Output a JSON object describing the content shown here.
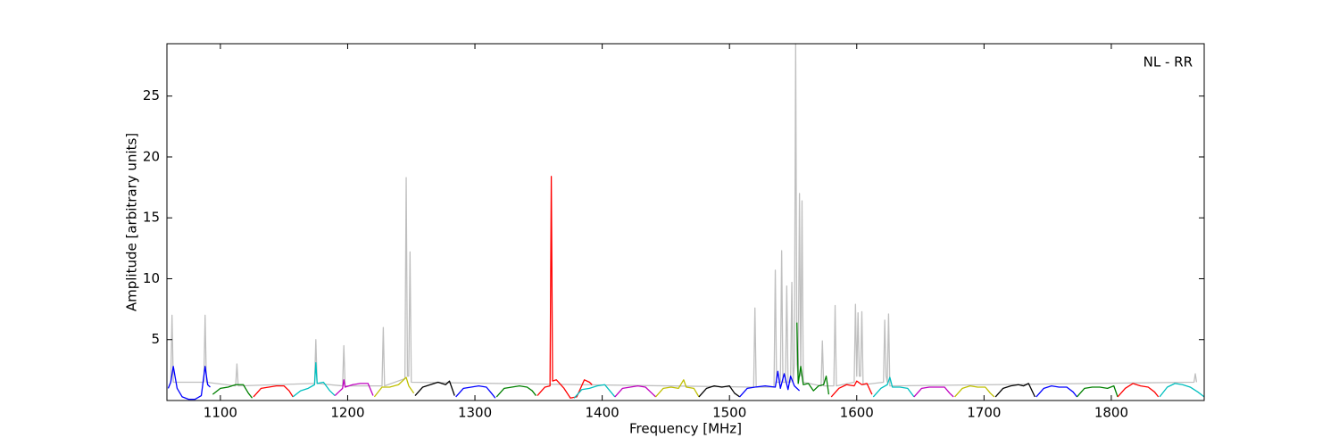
{
  "chart_data": {
    "type": "line",
    "xlabel": "Frequency [MHz]",
    "ylabel": "Amplitude [arbitrary units]",
    "annotation": "NL - RR",
    "xlim": [
      1058,
      1873
    ],
    "ylim": [
      0,
      29.3
    ],
    "xticks": [
      1100,
      1200,
      1300,
      1400,
      1500,
      1600,
      1700,
      1800
    ],
    "yticks": [
      5,
      10,
      15,
      20,
      25
    ],
    "series": [
      {
        "color": "#bfbfbf",
        "x": [
          1059,
          1061,
          1062,
          1063,
          1087,
          1088,
          1089,
          1112,
          1113,
          1114,
          1174,
          1175,
          1176,
          1196,
          1197,
          1198,
          1227,
          1228,
          1229,
          1245,
          1246,
          1247,
          1248,
          1249,
          1250,
          1519,
          1520,
          1521,
          1535,
          1536,
          1537,
          1540,
          1541,
          1542,
          1544,
          1545,
          1546,
          1548,
          1549,
          1550,
          1551,
          1552,
          1553,
          1554,
          1555,
          1556,
          1557,
          1558,
          1572,
          1573,
          1574,
          1582,
          1583,
          1584,
          1598,
          1599,
          1600,
          1601,
          1602,
          1603,
          1604,
          1605,
          1621,
          1622,
          1623,
          1624,
          1625,
          1626,
          1865,
          1866,
          1867
        ],
        "values": [
          1.0,
          1.5,
          7.0,
          1.5,
          1.5,
          7.0,
          1.5,
          1.2,
          3.0,
          1.2,
          1.4,
          5.0,
          1.4,
          1.2,
          4.5,
          1.2,
          1.2,
          6.0,
          1.2,
          1.8,
          18.3,
          2.0,
          2.0,
          12.2,
          1.5,
          1.1,
          7.6,
          1.1,
          1.1,
          10.7,
          1.5,
          1.5,
          12.3,
          1.5,
          1.5,
          9.4,
          1.5,
          1.5,
          9.7,
          1.5,
          3,
          29.3,
          3,
          2,
          17,
          2,
          16.4,
          1.5,
          1.2,
          4.9,
          1.2,
          1.2,
          7.8,
          1.2,
          1.5,
          7.9,
          2,
          7.2,
          2,
          2,
          7.3,
          1.3,
          1.5,
          6.6,
          2,
          1.5,
          7.1,
          1.2,
          1.5,
          2.2,
          1.5
        ]
      },
      {
        "color": "#0000ff",
        "x": [
          1059,
          1061,
          1063,
          1066,
          1070,
          1075,
          1080,
          1085,
          1088,
          1090,
          1092
        ],
        "values": [
          1.0,
          1.5,
          2.8,
          1.0,
          0.3,
          0.1,
          0.1,
          0.4,
          2.8,
          1.3,
          1.1
        ]
      },
      {
        "color": "#008000",
        "x": [
          1094,
          1100,
          1106,
          1112,
          1118,
          1122,
          1125
        ],
        "values": [
          0.5,
          1.0,
          1.1,
          1.3,
          1.3,
          0.6,
          0.2
        ]
      },
      {
        "color": "#ff0000",
        "x": [
          1126,
          1132,
          1138,
          1144,
          1150,
          1154,
          1157
        ],
        "values": [
          0.3,
          1.0,
          1.1,
          1.2,
          1.2,
          0.8,
          0.3
        ]
      },
      {
        "color": "#00bfbf",
        "x": [
          1157,
          1163,
          1169,
          1174,
          1175,
          1176,
          1181,
          1186,
          1190
        ],
        "values": [
          0.3,
          0.8,
          1.0,
          1.3,
          3.1,
          1.4,
          1.5,
          0.8,
          0.4
        ]
      },
      {
        "color": "#bf00bf",
        "x": [
          1190,
          1196,
          1197,
          1198,
          1204,
          1210,
          1216,
          1220
        ],
        "values": [
          0.4,
          1.0,
          1.7,
          1.1,
          1.3,
          1.4,
          1.4,
          0.4
        ]
      },
      {
        "color": "#bfbf00",
        "x": [
          1221,
          1227,
          1233,
          1240,
          1246,
          1248,
          1252
        ],
        "values": [
          0.3,
          1.1,
          1.1,
          1.3,
          1.9,
          1.2,
          0.6
        ]
      },
      {
        "color": "#000000",
        "x": [
          1253,
          1259,
          1265,
          1271,
          1277,
          1280,
          1284
        ],
        "values": [
          0.4,
          1.1,
          1.3,
          1.5,
          1.3,
          1.6,
          0.4
        ]
      },
      {
        "color": "#0000ff",
        "x": [
          1285,
          1291,
          1297,
          1303,
          1309,
          1313,
          1316
        ],
        "values": [
          0.3,
          1.0,
          1.1,
          1.2,
          1.1,
          0.6,
          0.2
        ]
      },
      {
        "color": "#008000",
        "x": [
          1317,
          1323,
          1329,
          1335,
          1341,
          1345,
          1348
        ],
        "values": [
          0.3,
          1.0,
          1.1,
          1.2,
          1.1,
          0.8,
          0.4
        ]
      },
      {
        "color": "#ff0000",
        "x": [
          1349,
          1355,
          1359,
          1360,
          1361,
          1364,
          1370,
          1375,
          1380,
          1386,
          1390,
          1392
        ],
        "values": [
          0.4,
          1.1,
          1.2,
          18.4,
          1.6,
          1.7,
          1.0,
          0.2,
          0.3,
          1.7,
          1.5,
          1.3
        ]
      },
      {
        "color": "#00bfbf",
        "x": [
          1378,
          1384,
          1390,
          1396,
          1402,
          1406,
          1410
        ],
        "values": [
          0.2,
          0.9,
          1.0,
          1.2,
          1.3,
          0.8,
          0.3
        ]
      },
      {
        "color": "#bf00bf",
        "x": [
          1410,
          1416,
          1422,
          1428,
          1434,
          1438,
          1442
        ],
        "values": [
          0.3,
          1.0,
          1.1,
          1.2,
          1.1,
          0.7,
          0.3
        ]
      },
      {
        "color": "#bfbf00",
        "x": [
          1442,
          1448,
          1454,
          1460,
          1464,
          1466,
          1472,
          1476
        ],
        "values": [
          0.3,
          1.0,
          1.1,
          1.0,
          1.7,
          1.1,
          1.0,
          0.3
        ]
      },
      {
        "color": "#000000",
        "x": [
          1476,
          1482,
          1488,
          1494,
          1500,
          1504,
          1508
        ],
        "values": [
          0.3,
          1.0,
          1.2,
          1.1,
          1.2,
          0.6,
          0.3
        ]
      },
      {
        "color": "#0000ff",
        "x": [
          1508,
          1514,
          1520,
          1528,
          1536,
          1538,
          1540,
          1543,
          1546,
          1548,
          1551,
          1555
        ],
        "values": [
          0.3,
          1.0,
          1.1,
          1.2,
          1.1,
          2.4,
          1.0,
          2.2,
          0.9,
          2.0,
          1.2,
          0.8
        ]
      },
      {
        "color": "#008000",
        "x": [
          1553,
          1554,
          1556,
          1558,
          1562,
          1566,
          1570,
          1574,
          1576,
          1578
        ],
        "values": [
          6.4,
          1.4,
          2.8,
          1.3,
          1.4,
          0.8,
          1.2,
          1.3,
          2.0,
          0.5
        ]
      },
      {
        "color": "#ff0000",
        "x": [
          1580,
          1586,
          1592,
          1598,
          1600,
          1604,
          1608,
          1612
        ],
        "values": [
          0.3,
          1.0,
          1.3,
          1.2,
          1.6,
          1.3,
          1.4,
          0.5
        ]
      },
      {
        "color": "#00bfbf",
        "x": [
          1613,
          1619,
          1624,
          1626,
          1628,
          1634,
          1640,
          1645
        ],
        "values": [
          0.3,
          1.0,
          1.3,
          1.9,
          1.1,
          1.1,
          1.0,
          0.3
        ]
      },
      {
        "color": "#bf00bf",
        "x": [
          1645,
          1651,
          1657,
          1663,
          1669,
          1673,
          1676
        ],
        "values": [
          0.3,
          1.0,
          1.1,
          1.1,
          1.1,
          0.6,
          0.3
        ]
      },
      {
        "color": "#bfbf00",
        "x": [
          1677,
          1683,
          1689,
          1695,
          1701,
          1705,
          1708
        ],
        "values": [
          0.3,
          1.0,
          1.2,
          1.1,
          1.1,
          0.6,
          0.3
        ]
      },
      {
        "color": "#000000",
        "x": [
          1709,
          1715,
          1721,
          1727,
          1731,
          1735,
          1740
        ],
        "values": [
          0.3,
          1.0,
          1.2,
          1.3,
          1.2,
          1.4,
          0.3
        ]
      },
      {
        "color": "#0000ff",
        "x": [
          1741,
          1747,
          1753,
          1759,
          1765,
          1770,
          1773
        ],
        "values": [
          0.3,
          1.0,
          1.2,
          1.1,
          1.1,
          0.7,
          0.3
        ]
      },
      {
        "color": "#008000",
        "x": [
          1773,
          1779,
          1785,
          1791,
          1797,
          1802,
          1805
        ],
        "values": [
          0.3,
          1.0,
          1.1,
          1.1,
          1.0,
          1.2,
          0.3
        ]
      },
      {
        "color": "#ff0000",
        "x": [
          1805,
          1811,
          1817,
          1823,
          1829,
          1834,
          1837
        ],
        "values": [
          0.3,
          1.0,
          1.4,
          1.2,
          1.1,
          0.7,
          0.3
        ]
      },
      {
        "color": "#00bfbf",
        "x": [
          1838,
          1844,
          1850,
          1856,
          1862,
          1868,
          1873
        ],
        "values": [
          0.3,
          1.1,
          1.4,
          1.3,
          1.1,
          0.7,
          0.3
        ]
      }
    ]
  }
}
